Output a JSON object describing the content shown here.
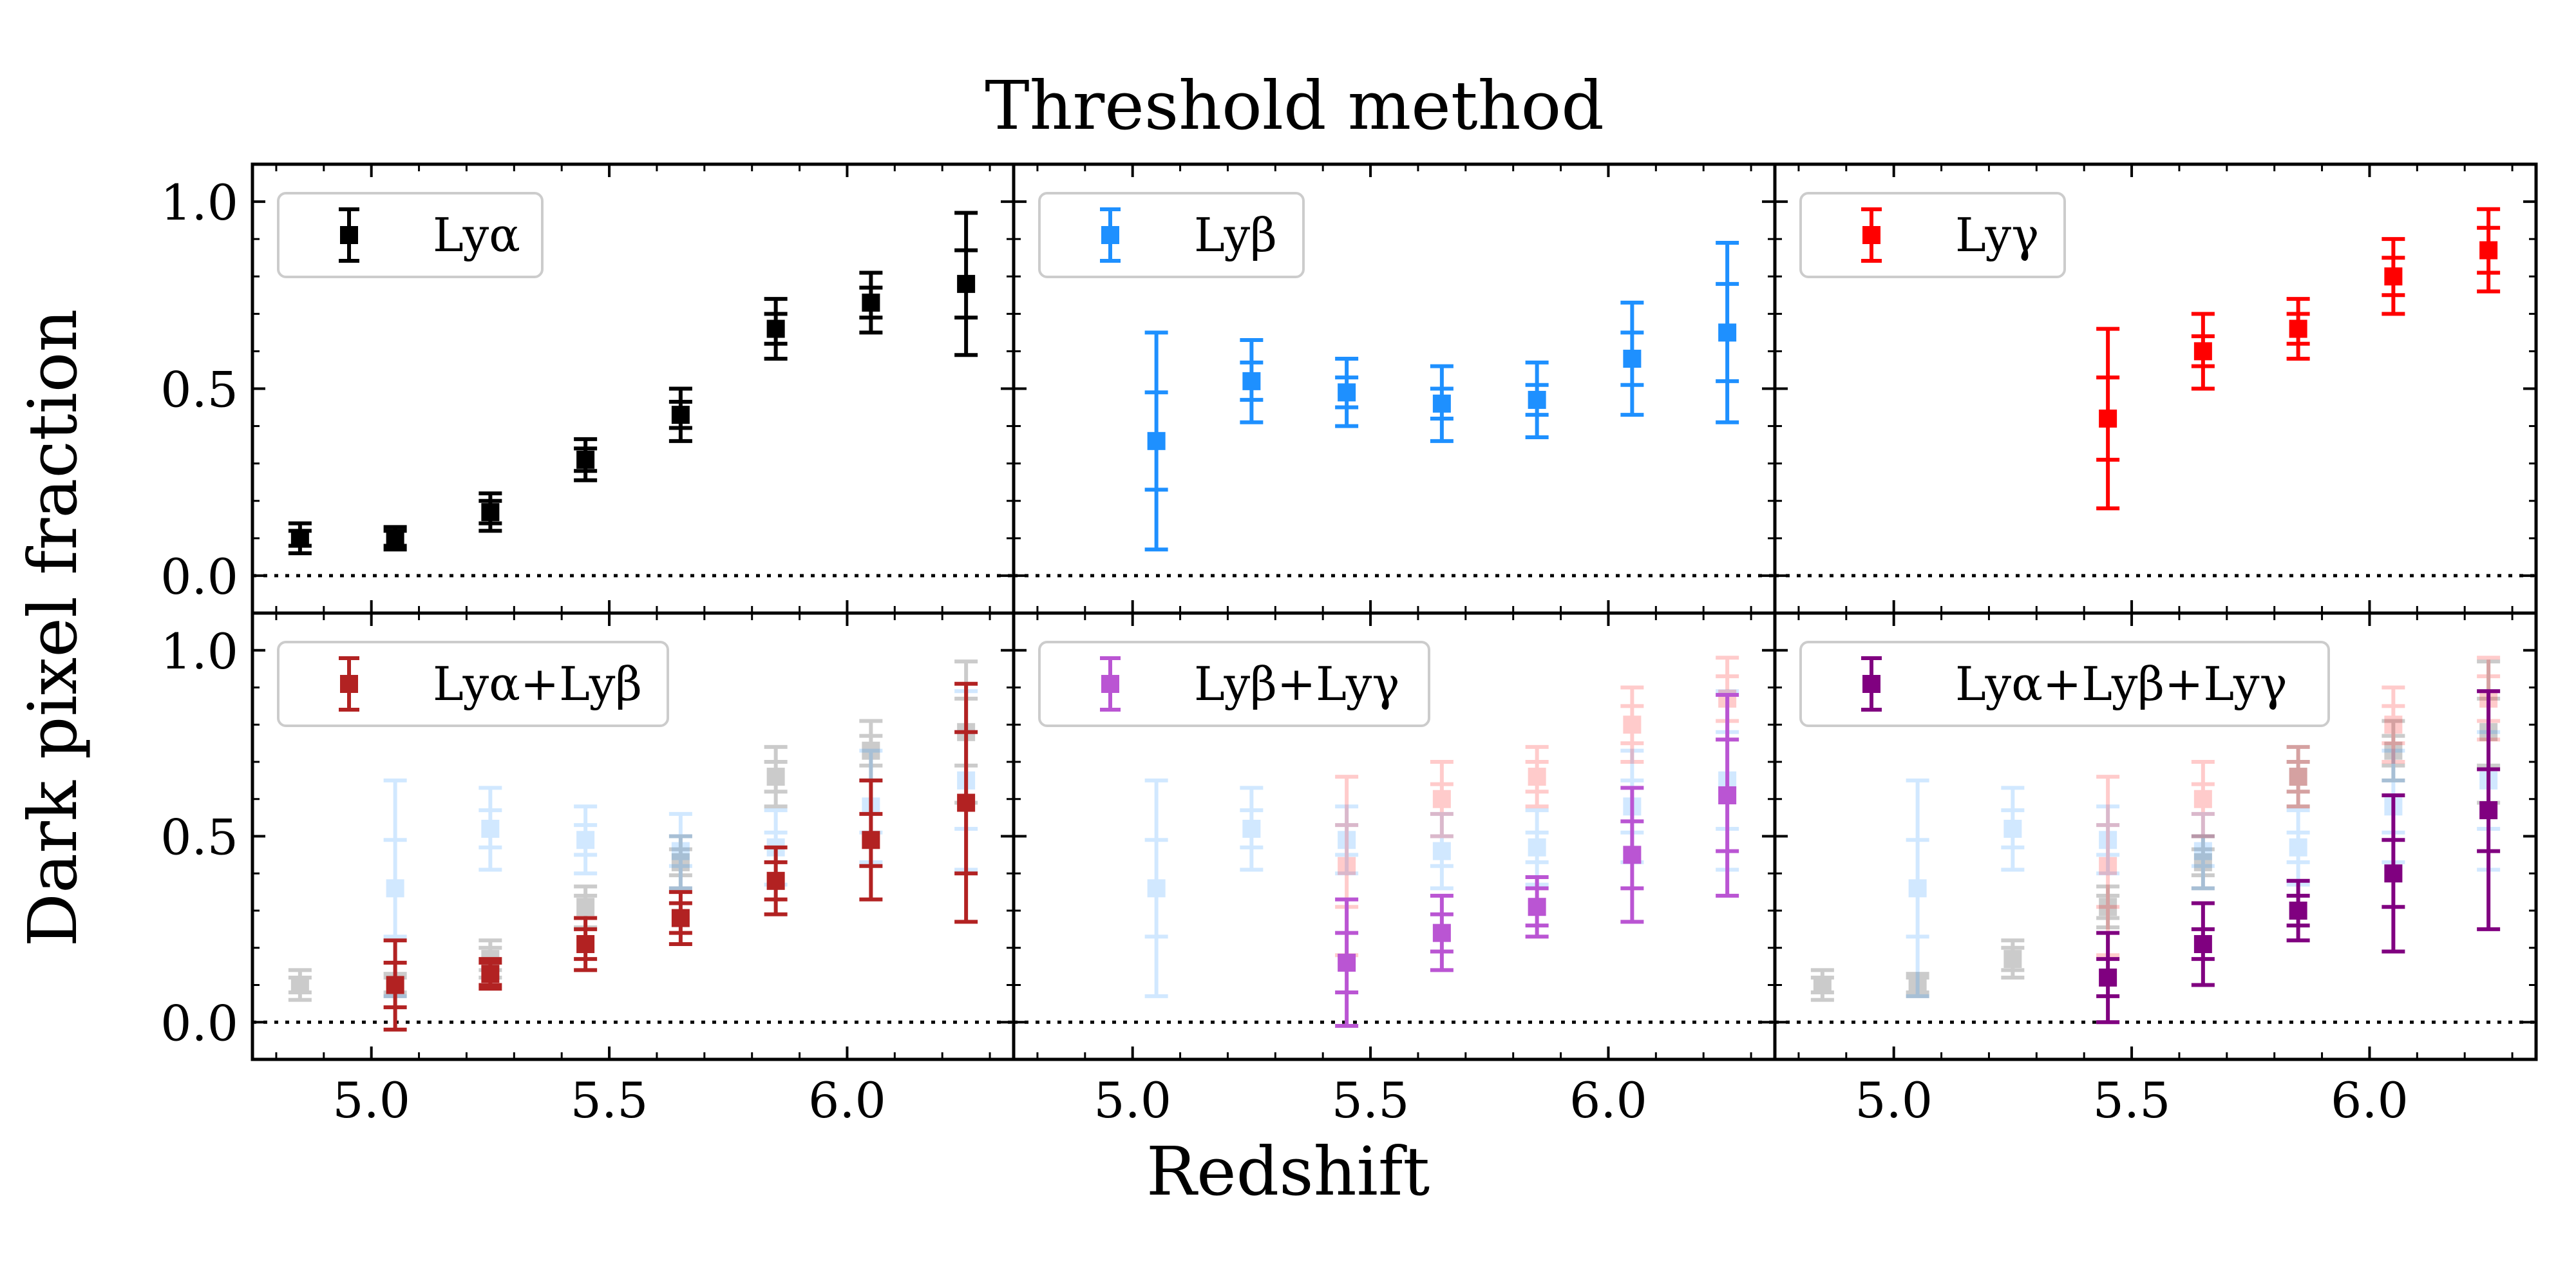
{
  "figure": {
    "title": "Threshold method",
    "xlabel": "Redshift",
    "ylabel": "Dark pixel fraction"
  },
  "chart_data": {
    "type": "scatter",
    "layout": "2x3 grid, shared axes",
    "xlim": [
      4.75,
      6.35
    ],
    "ylim": [
      -0.1,
      1.1
    ],
    "xticks": [
      5.0,
      5.5,
      6.0
    ],
    "xticklabels": [
      "5.0",
      "5.5",
      "6.0"
    ],
    "yticks": [
      0.0,
      0.5,
      1.0
    ],
    "yticklabels": [
      "0.0",
      "0.5",
      "1.0"
    ],
    "reference_line": {
      "y": 0.0,
      "style": "dotted"
    },
    "legend_placement": "top-left",
    "colors": {
      "lya": "#000000",
      "lyb": "#1e90ff",
      "lyg": "#ff0000",
      "lyab": "#b22222",
      "lybg": "#ba55d3",
      "lyabg": "#800080"
    },
    "series": {
      "lya": {
        "name": "Lyα",
        "color": "#000000",
        "points": [
          {
            "x": 4.85,
            "y": 0.1,
            "e1": 0.02,
            "e2": 0.04
          },
          {
            "x": 5.05,
            "y": 0.1,
            "e1": 0.02,
            "e2": 0.03
          },
          {
            "x": 5.25,
            "y": 0.17,
            "e1": 0.03,
            "e2": 0.05
          },
          {
            "x": 5.45,
            "y": 0.31,
            "e1": 0.03,
            "e2": 0.055
          },
          {
            "x": 5.65,
            "y": 0.43,
            "e1": 0.035,
            "e2": 0.07
          },
          {
            "x": 5.85,
            "y": 0.66,
            "e1": 0.04,
            "e2": 0.08
          },
          {
            "x": 6.05,
            "y": 0.73,
            "e1": 0.04,
            "e2": 0.08
          },
          {
            "x": 6.25,
            "y": 0.78,
            "e1": 0.09,
            "e2": 0.19
          }
        ]
      },
      "lyb": {
        "name": "Lyβ",
        "color": "#1e90ff",
        "points": [
          {
            "x": 5.05,
            "y": 0.36,
            "e1": 0.13,
            "e2": 0.29
          },
          {
            "x": 5.25,
            "y": 0.52,
            "e1": 0.05,
            "e2": 0.11
          },
          {
            "x": 5.45,
            "y": 0.49,
            "e1": 0.04,
            "e2": 0.09
          },
          {
            "x": 5.65,
            "y": 0.46,
            "e1": 0.04,
            "e2": 0.1
          },
          {
            "x": 5.85,
            "y": 0.47,
            "e1": 0.04,
            "e2": 0.1
          },
          {
            "x": 6.05,
            "y": 0.58,
            "e1": 0.07,
            "e2": 0.15
          },
          {
            "x": 6.25,
            "y": 0.65,
            "e1": 0.13,
            "e2": 0.24
          }
        ]
      },
      "lyg": {
        "name": "Lyγ",
        "color": "#ff0000",
        "points": [
          {
            "x": 5.45,
            "y": 0.42,
            "e1": 0.11,
            "e2": 0.24
          },
          {
            "x": 5.65,
            "y": 0.6,
            "e1": 0.04,
            "e2": 0.1
          },
          {
            "x": 5.85,
            "y": 0.66,
            "e1": 0.04,
            "e2": 0.08
          },
          {
            "x": 6.05,
            "y": 0.8,
            "e1": 0.05,
            "e2": 0.1
          },
          {
            "x": 6.25,
            "y": 0.87,
            "e1": 0.06,
            "e2": 0.11
          }
        ]
      },
      "lyab": {
        "name": "Lyα+Lyβ",
        "color": "#b22222",
        "points": [
          {
            "x": 5.05,
            "y": 0.1,
            "e1": 0.06,
            "e2": 0.12
          },
          {
            "x": 5.25,
            "y": 0.13,
            "e1": 0.03,
            "e2": 0.04
          },
          {
            "x": 5.45,
            "y": 0.21,
            "e1": 0.04,
            "e2": 0.07
          },
          {
            "x": 5.65,
            "y": 0.28,
            "e1": 0.04,
            "e2": 0.07
          },
          {
            "x": 5.85,
            "y": 0.38,
            "e1": 0.05,
            "e2": 0.09
          },
          {
            "x": 6.05,
            "y": 0.49,
            "e1": 0.07,
            "e2": 0.16
          },
          {
            "x": 6.25,
            "y": 0.59,
            "e1": 0.19,
            "e2": 0.32
          }
        ]
      },
      "lybg": {
        "name": "Lyβ+Lyγ",
        "color": "#ba55d3",
        "points": [
          {
            "x": 5.45,
            "y": 0.16,
            "e1": 0.08,
            "e2": 0.17
          },
          {
            "x": 5.65,
            "y": 0.24,
            "e1": 0.05,
            "e2": 0.1
          },
          {
            "x": 5.85,
            "y": 0.31,
            "e1": 0.05,
            "e2": 0.08
          },
          {
            "x": 6.05,
            "y": 0.45,
            "e1": 0.09,
            "e2": 0.18
          },
          {
            "x": 6.25,
            "y": 0.61,
            "e1": 0.15,
            "e2": 0.27
          }
        ]
      },
      "lyabg": {
        "name": "Lyα+Lyβ+Lyγ",
        "color": "#800080",
        "points": [
          {
            "x": 5.45,
            "y": 0.12,
            "e1": 0.05,
            "e2": 0.12
          },
          {
            "x": 5.65,
            "y": 0.21,
            "e1": 0.04,
            "e2": 0.11
          },
          {
            "x": 5.85,
            "y": 0.3,
            "e1": 0.04,
            "e2": 0.08
          },
          {
            "x": 6.05,
            "y": 0.4,
            "e1": 0.09,
            "e2": 0.21
          },
          {
            "x": 6.25,
            "y": 0.57,
            "e1": 0.11,
            "e2": 0.32
          }
        ]
      }
    },
    "panels": [
      {
        "legend": "Lyα",
        "main": "lya",
        "faded": []
      },
      {
        "legend": "Lyβ",
        "main": "lyb",
        "faded": []
      },
      {
        "legend": "Lyγ",
        "main": "lyg",
        "faded": []
      },
      {
        "legend": "Lyα+Lyβ",
        "main": "lyab",
        "faded": [
          "lya",
          "lyb"
        ]
      },
      {
        "legend": "Lyβ+Lyγ",
        "main": "lybg",
        "faded": [
          "lyb",
          "lyg"
        ]
      },
      {
        "legend": "Lyα+Lyβ+Lyγ",
        "main": "lyabg",
        "faded": [
          "lya",
          "lyb",
          "lyg"
        ]
      }
    ]
  }
}
